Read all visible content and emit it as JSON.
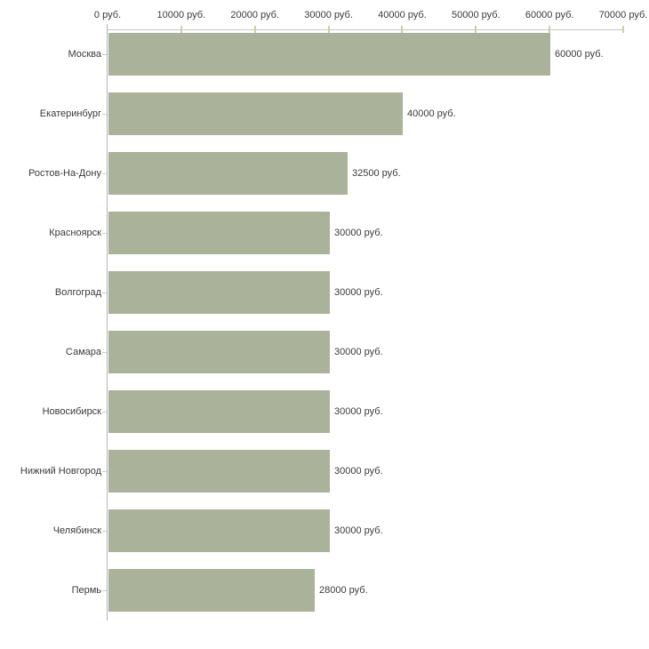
{
  "chart_data": {
    "type": "bar",
    "orientation": "horizontal",
    "title": "",
    "xlabel": "",
    "ylabel": "",
    "currency_suffix": "руб.",
    "categories": [
      "Москва",
      "Екатеринбург",
      "Ростов-На-Дону",
      "Красноярск",
      "Волгоград",
      "Самара",
      "Новосибирск",
      "Нижний Новгород",
      "Челябинск",
      "Пермь"
    ],
    "values": [
      60000,
      40000,
      32500,
      30000,
      30000,
      30000,
      30000,
      30000,
      30000,
      28000
    ],
    "value_labels": [
      "60000 руб.",
      "40000 руб.",
      "32500 руб.",
      "30000 руб.",
      "30000 руб.",
      "30000 руб.",
      "30000 руб.",
      "30000 руб.",
      "30000 руб.",
      "28000 руб."
    ],
    "x_ticks": [
      0,
      10000,
      20000,
      30000,
      40000,
      50000,
      60000,
      70000
    ],
    "x_tick_labels": [
      "0 руб.",
      "10000 руб.",
      "20000 руб.",
      "30000 руб.",
      "40000 руб.",
      "50000 руб.",
      "60000 руб.",
      "70000 руб."
    ],
    "xlim": [
      0,
      70000
    ],
    "grid": false,
    "legend": null,
    "colors": {
      "bar": "#aab29a",
      "x_axis_line": "#c6c6c6",
      "y_axis_line": "#b3b3b3",
      "x_tick_mark": "#cdcf9e",
      "y_tick_mark": "#c9cdb8",
      "text": "#3a3a3a",
      "background": "#ffffff"
    }
  }
}
